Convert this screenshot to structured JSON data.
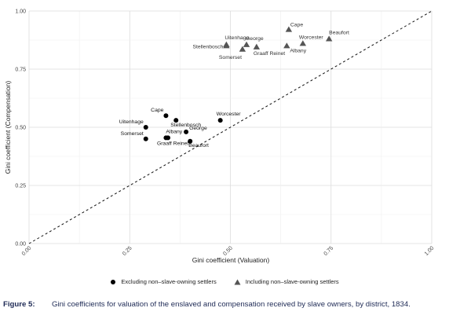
{
  "chart_data": {
    "type": "scatter",
    "xlabel": "Gini coefficient (Valuation)",
    "ylabel": "Gini coefficient (Compensation)",
    "xlim": [
      0,
      1
    ],
    "ylim": [
      0,
      1
    ],
    "x_ticks": [
      "0.00",
      "0.25",
      "0.50",
      "0.75",
      "1.00"
    ],
    "y_ticks": [
      "0.00",
      "0.25",
      "0.50",
      "0.75",
      "1.00"
    ],
    "grid": true,
    "reference_line": "y = x (dashed)",
    "legend_position": "bottom",
    "series": [
      {
        "name": "Excluding non–slave-owning settlers",
        "marker": "circle",
        "color": "#000000",
        "points": [
          {
            "label": "Cape",
            "x": 0.34,
            "y": 0.55
          },
          {
            "label": "Uitenhage",
            "x": 0.29,
            "y": 0.5
          },
          {
            "label": "Stellenbosch",
            "x": 0.365,
            "y": 0.53
          },
          {
            "label": "Worcester",
            "x": 0.475,
            "y": 0.53
          },
          {
            "label": "Somerset",
            "x": 0.29,
            "y": 0.45
          },
          {
            "label": "Albany",
            "x": 0.34,
            "y": 0.455
          },
          {
            "label": "Graaff Reinet",
            "x": 0.345,
            "y": 0.455
          },
          {
            "label": "George",
            "x": 0.39,
            "y": 0.48
          },
          {
            "label": "Beaufort",
            "x": 0.4,
            "y": 0.44
          }
        ]
      },
      {
        "name": "Including non–slave-owning settlers",
        "marker": "triangle",
        "color": "#555555",
        "points": [
          {
            "label": "Cape",
            "x": 0.645,
            "y": 0.92
          },
          {
            "label": "Uitenhage",
            "x": 0.49,
            "y": 0.855
          },
          {
            "label": "Stellenbosch",
            "x": 0.49,
            "y": 0.85
          },
          {
            "label": "George",
            "x": 0.54,
            "y": 0.855
          },
          {
            "label": "Worcester",
            "x": 0.68,
            "y": 0.86
          },
          {
            "label": "Beaufort",
            "x": 0.745,
            "y": 0.88
          },
          {
            "label": "Somerset",
            "x": 0.53,
            "y": 0.835
          },
          {
            "label": "Graaff Reinet",
            "x": 0.565,
            "y": 0.845
          },
          {
            "label": "Albany",
            "x": 0.64,
            "y": 0.85
          }
        ]
      }
    ]
  },
  "caption": {
    "label": "Figure 5:",
    "text": "Gini coefficients for valuation of the enslaved and compensation received by slave owners, by district, 1834."
  }
}
